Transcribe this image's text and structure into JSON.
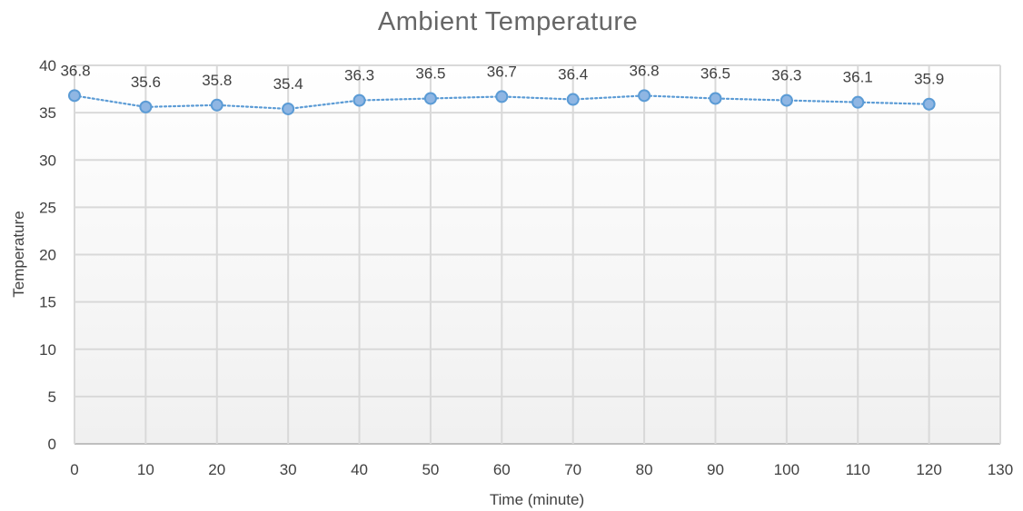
{
  "chart_data": {
    "type": "line",
    "title": "Ambient Temperature",
    "xlabel": "Time (minute)",
    "ylabel": "Temperature",
    "xlim": [
      0,
      130
    ],
    "ylim": [
      0,
      40
    ],
    "x_ticks": [
      "0",
      "10",
      "20",
      "30",
      "40",
      "50",
      "60",
      "70",
      "80",
      "90",
      "100",
      "110",
      "120",
      "130"
    ],
    "y_ticks": [
      "0",
      "5",
      "10",
      "15",
      "20",
      "25",
      "30",
      "35",
      "40"
    ],
    "grid": true,
    "legend": "none",
    "series": [
      {
        "x": [
          0,
          10,
          20,
          30,
          40,
          50,
          60,
          70,
          80,
          90,
          100,
          110,
          120
        ],
        "values": [
          36.8,
          35.6,
          35.8,
          35.4,
          36.3,
          36.5,
          36.7,
          36.4,
          36.8,
          36.5,
          36.3,
          36.1,
          35.9
        ],
        "labels": [
          "36.8",
          "35.6",
          "35.8",
          "35.4",
          "36.3",
          "36.5",
          "36.7",
          "36.4",
          "36.8",
          "36.5",
          "36.3",
          "36.1",
          "35.9"
        ],
        "color": "#5b9bd5",
        "marker_fill": "#8fb6e3",
        "line_style": "dotted"
      }
    ],
    "colors": {
      "plot_background_top": "#ffffff",
      "plot_background_bottom": "#f0f0f0",
      "grid": "#d9d9d9",
      "title": "#666666",
      "text": "#404040"
    }
  }
}
